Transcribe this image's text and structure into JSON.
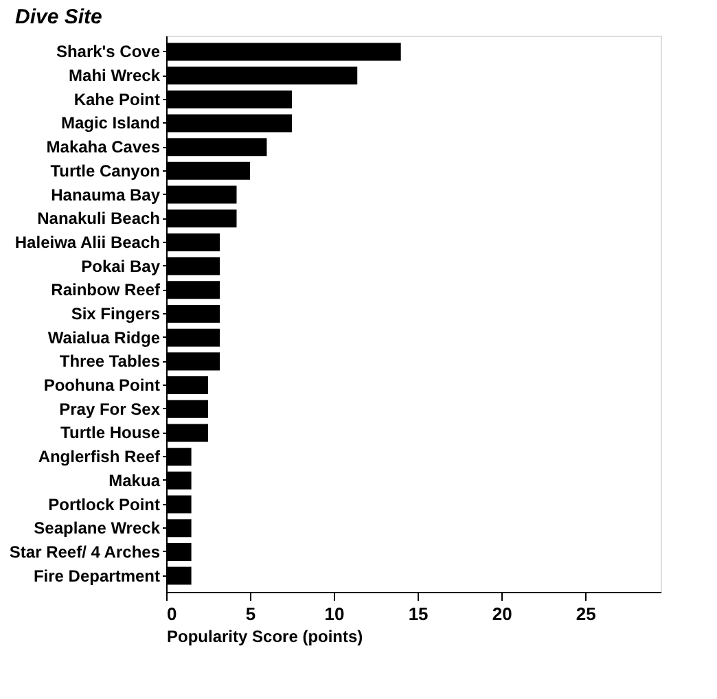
{
  "chart_data": {
    "type": "bar",
    "orientation": "horizontal",
    "ylabel": "Dive Site",
    "xlabel": "Popularity Score (points)",
    "categories": [
      "Shark's Cove",
      "Mahi Wreck",
      "Kahe Point",
      "Magic Island",
      "Makaha Caves",
      "Turtle Canyon",
      "Hanauma Bay",
      "Nanakuli Beach",
      "Haleiwa Alii Beach",
      "Pokai Bay",
      "Rainbow Reef",
      "Six Fingers",
      "Waialua Ridge",
      "Three Tables",
      "Poohuna Point",
      "Pray For Sex",
      "Turtle House",
      "Anglerfish Reef",
      "Makua",
      "Portlock Point",
      "Seaplane Wreck",
      "Star Reef/ 4 Arches",
      "Fire Department"
    ],
    "values": [
      14,
      11.4,
      7.5,
      7.5,
      6,
      5,
      4.2,
      4.2,
      3.2,
      3.2,
      3.2,
      3.2,
      3.2,
      3.2,
      2.5,
      2.5,
      2.5,
      1.5,
      1.5,
      1.5,
      1.5,
      1.5,
      1.5
    ],
    "color": "#000000",
    "xlim": [
      0,
      29.5
    ],
    "xticks": [
      0,
      5,
      10,
      15,
      20,
      25
    ],
    "grid": false
  }
}
